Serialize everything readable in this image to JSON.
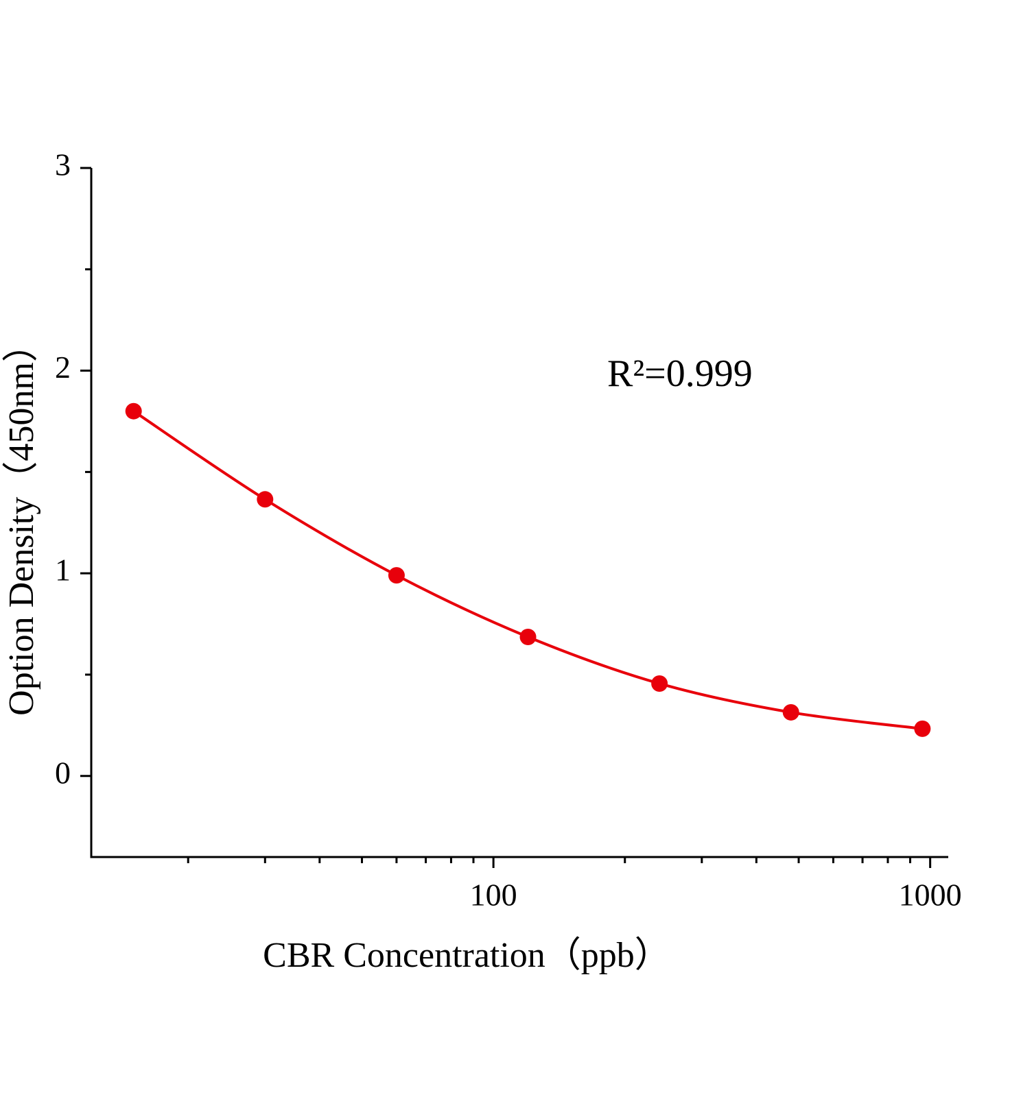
{
  "chart_data": {
    "type": "line",
    "x": [
      15,
      30,
      60,
      120,
      240,
      480,
      960
    ],
    "values": [
      1.8,
      1.365,
      0.99,
      0.686,
      0.456,
      0.314,
      0.233
    ],
    "color": "#e8000b",
    "markers": true,
    "xlabel": "CBR Concentration（ppb）",
    "ylabel": "Option Density（450nm）",
    "annotation": "R²=0.999",
    "xscale": "log",
    "xlim": [
      12,
      1100
    ],
    "xticks": [
      100,
      1000
    ],
    "xminorticks": [
      20,
      30,
      40,
      50,
      60,
      70,
      80,
      90,
      200,
      300,
      400,
      500,
      600,
      700,
      800,
      900
    ],
    "ylim": [
      -0.4,
      3
    ],
    "yticks": [
      0,
      1,
      2,
      3
    ],
    "yminorticks": [
      0.5,
      1.5,
      2.5
    ],
    "grid": false
  }
}
